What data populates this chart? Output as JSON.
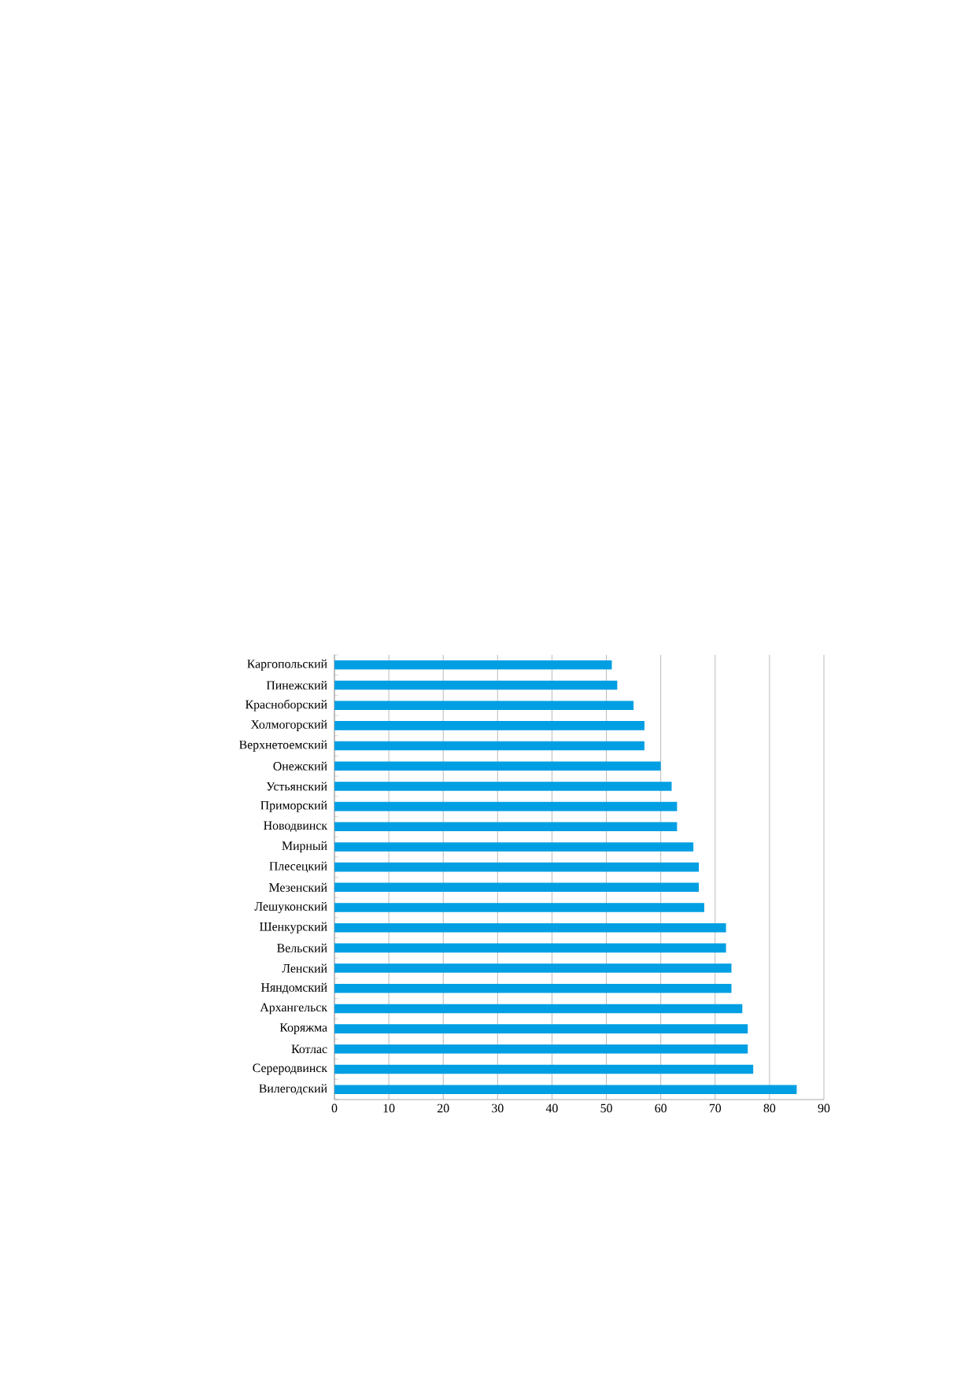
{
  "chart_data": {
    "type": "bar",
    "orientation": "horizontal",
    "categories": [
      "Каргопольский",
      "Пинежский",
      "Красноборский",
      "Холмогорский",
      "Верхнетоемский",
      "Онежский",
      "Устьянский",
      "Приморский",
      "Новодвинск",
      "Мирный",
      "Плесецкий",
      "Мезенский",
      "Лешуконский",
      "Шенкурский",
      "Вельский",
      "Ленский",
      "Няндомский",
      "Архангельск",
      "Коряжма",
      "Котлас",
      "Сереродвинск",
      "Вилегодский"
    ],
    "values": [
      51,
      52,
      55,
      57,
      57,
      60,
      62,
      63,
      63,
      66,
      67,
      67,
      68,
      72,
      72,
      73,
      73,
      75,
      76,
      76,
      77,
      85
    ],
    "color": "#009fe3",
    "xlim": [
      0,
      90
    ],
    "xticks": [
      0,
      10,
      20,
      30,
      40,
      50,
      60,
      70,
      80,
      90
    ],
    "grid": "x"
  }
}
